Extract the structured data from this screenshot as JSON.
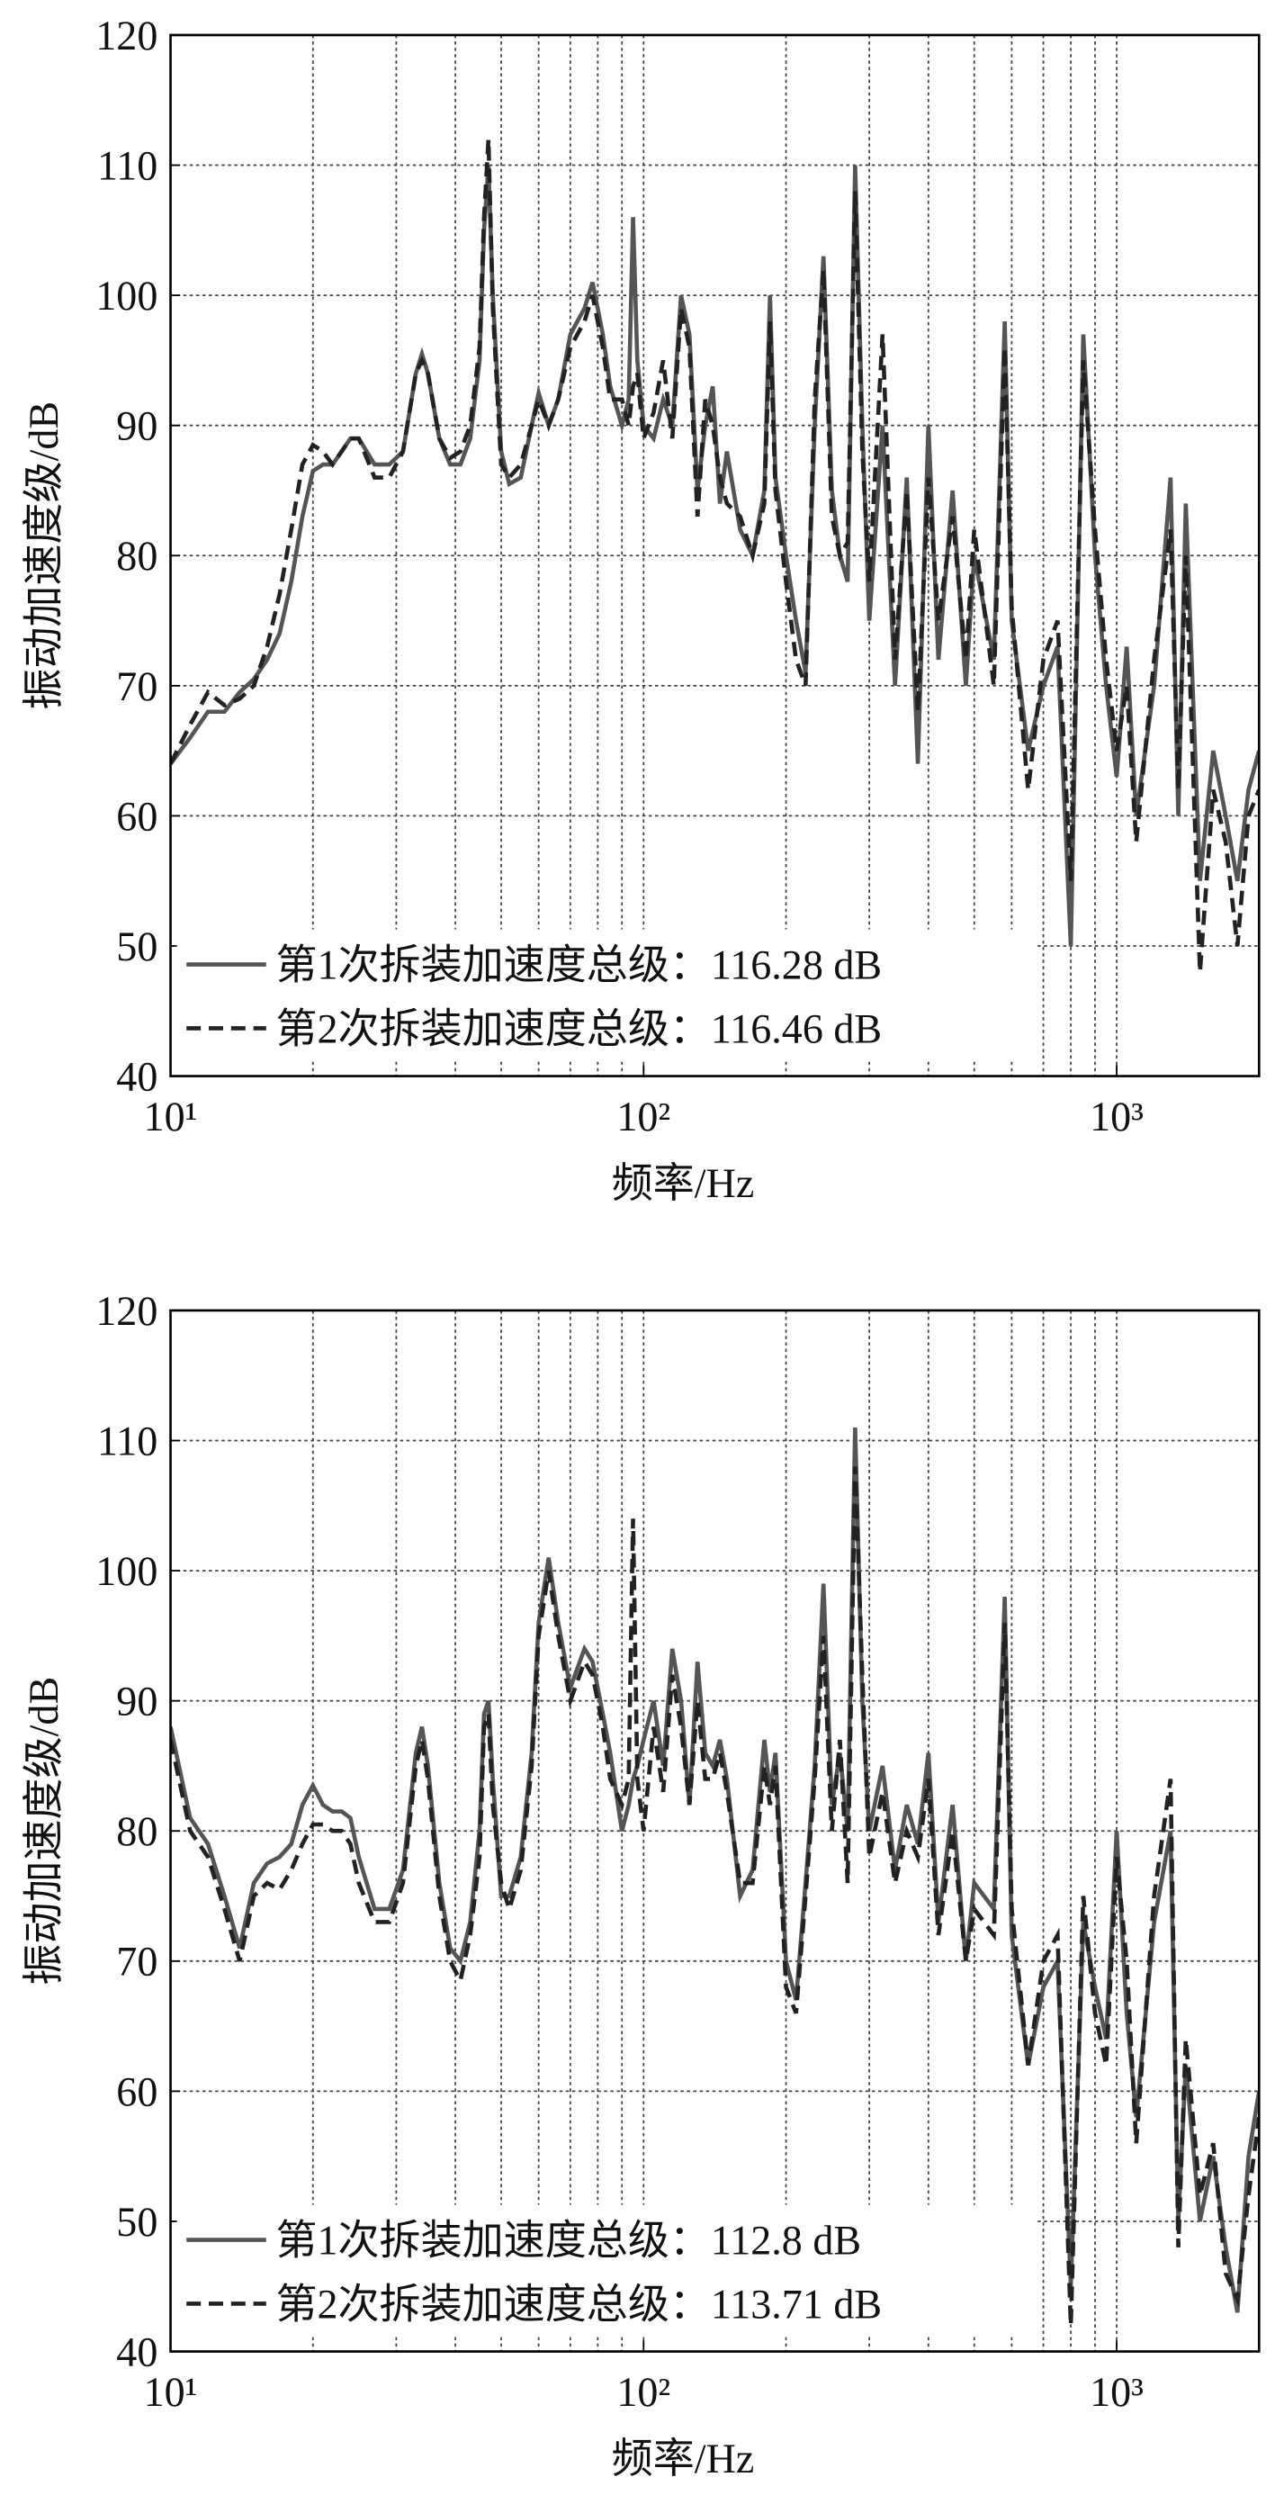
{
  "chart_data": [
    {
      "type": "line",
      "x_label": "频率/Hz",
      "y_label": "振动加速度级/dB",
      "log_x": true,
      "grid": true,
      "legend": "lower-left",
      "xlim": [
        10,
        2000
      ],
      "ylim": [
        40,
        120
      ],
      "xticks": [
        {
          "value": 10,
          "label": "10¹"
        },
        {
          "value": 100,
          "label": "10²"
        },
        {
          "value": 1000,
          "label": "10³"
        }
      ],
      "minor_xticks": [
        20,
        30,
        40,
        50,
        60,
        70,
        80,
        90,
        200,
        300,
        400,
        500,
        600,
        700,
        800,
        900
      ],
      "yticks": [
        40,
        50,
        60,
        70,
        80,
        90,
        100,
        110,
        120
      ],
      "x": [
        10,
        11,
        12,
        13,
        14,
        15,
        16,
        17,
        18,
        19,
        20,
        21,
        22,
        23,
        24,
        25,
        27,
        29,
        31,
        33,
        34,
        35,
        37,
        39,
        41,
        43,
        45,
        46,
        47,
        48,
        50,
        52,
        55,
        58,
        60,
        63,
        66,
        70,
        75,
        78,
        82,
        85,
        90,
        93,
        95,
        97,
        100,
        105,
        110,
        115,
        120,
        125,
        130,
        135,
        140,
        145,
        150,
        160,
        170,
        180,
        185,
        190,
        200,
        210,
        220,
        230,
        240,
        250,
        260,
        270,
        280,
        290,
        300,
        320,
        340,
        360,
        380,
        400,
        420,
        450,
        480,
        500,
        550,
        580,
        600,
        650,
        700,
        750,
        800,
        850,
        900,
        950,
        1000,
        1050,
        1100,
        1200,
        1300,
        1350,
        1400,
        1500,
        1600,
        1700,
        1800,
        1900,
        2000
      ],
      "series": [
        {
          "name": "第1次拆装加速度总级：116.28 dB",
          "color": "#555555",
          "dash": false,
          "values": [
            64,
            66,
            68,
            68,
            69.5,
            70.5,
            72,
            74,
            78,
            83,
            86.5,
            87,
            87,
            88,
            89,
            89,
            87,
            87,
            88,
            94,
            95.5,
            94,
            89,
            87,
            87,
            89,
            95,
            105,
            110,
            100,
            88,
            85.5,
            86,
            90,
            92.5,
            90,
            92,
            97,
            99,
            101,
            97,
            93,
            90,
            92,
            106,
            95,
            90,
            89,
            92,
            90,
            100,
            97,
            85,
            90,
            93,
            84,
            88,
            82,
            80,
            85,
            100,
            86,
            80,
            75,
            71,
            90,
            103,
            85,
            80,
            78,
            110,
            90,
            75,
            90,
            70,
            86,
            64,
            90,
            72,
            85,
            70,
            80,
            72,
            98,
            75,
            65,
            70,
            73,
            50,
            97,
            80,
            70,
            63,
            73,
            60,
            70,
            86,
            60,
            84,
            55,
            65,
            60,
            55,
            62,
            65
          ]
        },
        {
          "name": "第2次拆装加速度总级：116.46 dB",
          "color": "#222222",
          "dash": true,
          "values": [
            64,
            67,
            69.5,
            68.5,
            69,
            70,
            73,
            77,
            82,
            87,
            88.5,
            88,
            87,
            88,
            89,
            89,
            86,
            86,
            88,
            94,
            95,
            94,
            89,
            87.5,
            88,
            90,
            96,
            106,
            112,
            99,
            87,
            86,
            87,
            90,
            92,
            90,
            92,
            96,
            98,
            100,
            96,
            92,
            92,
            90,
            93,
            94,
            89,
            91,
            95,
            89,
            99,
            96,
            83,
            92,
            90,
            86,
            84,
            83,
            80,
            84,
            98,
            85,
            78,
            72,
            70,
            92,
            102,
            83,
            80,
            81,
            108,
            88,
            78,
            97,
            72,
            85,
            68,
            86,
            75,
            83,
            72,
            82,
            70,
            96,
            76,
            62,
            72,
            75,
            55,
            95,
            82,
            72,
            65,
            70,
            58,
            72,
            82,
            62,
            80,
            48,
            62,
            58,
            50,
            60,
            62
          ]
        }
      ]
    },
    {
      "type": "line",
      "x_label": "频率/Hz",
      "y_label": "振动加速度级/dB",
      "log_x": true,
      "grid": true,
      "legend": "lower-left",
      "xlim": [
        10,
        2000
      ],
      "ylim": [
        40,
        120
      ],
      "xticks": [
        {
          "value": 10,
          "label": "10¹"
        },
        {
          "value": 100,
          "label": "10²"
        },
        {
          "value": 1000,
          "label": "10³"
        }
      ],
      "minor_xticks": [
        20,
        30,
        40,
        50,
        60,
        70,
        80,
        90,
        200,
        300,
        400,
        500,
        600,
        700,
        800,
        900
      ],
      "yticks": [
        40,
        50,
        60,
        70,
        80,
        90,
        100,
        110,
        120
      ],
      "x": [
        10,
        11,
        12,
        13,
        14,
        15,
        16,
        17,
        18,
        19,
        20,
        21,
        22,
        23,
        24,
        25,
        27,
        29,
        31,
        33,
        34,
        35,
        37,
        39,
        41,
        43,
        45,
        46,
        47,
        48,
        50,
        52,
        55,
        58,
        60,
        63,
        66,
        70,
        75,
        78,
        82,
        85,
        90,
        93,
        95,
        97,
        100,
        105,
        110,
        115,
        120,
        125,
        130,
        135,
        140,
        145,
        150,
        160,
        170,
        180,
        185,
        190,
        200,
        210,
        220,
        230,
        240,
        250,
        260,
        270,
        280,
        290,
        300,
        320,
        340,
        360,
        380,
        400,
        420,
        450,
        480,
        500,
        550,
        580,
        600,
        650,
        700,
        750,
        800,
        850,
        900,
        950,
        1000,
        1050,
        1100,
        1200,
        1300,
        1350,
        1400,
        1500,
        1600,
        1700,
        1800,
        1900,
        2000
      ],
      "series": [
        {
          "name": "第1次拆装加速度总级：112.8 dB",
          "color": "#555555",
          "dash": false,
          "values": [
            88,
            81,
            79,
            75,
            71,
            76,
            77.5,
            78,
            79,
            82,
            83.5,
            82,
            81.5,
            81.5,
            81,
            78,
            74,
            74,
            77,
            86,
            88,
            85,
            76,
            71,
            70,
            73,
            80,
            89,
            90,
            84,
            75,
            75,
            78,
            86,
            96,
            101,
            96,
            91,
            94,
            93,
            89,
            86,
            80,
            82,
            84,
            85,
            87,
            90,
            85,
            94,
            90,
            82,
            93,
            86,
            85,
            87,
            84,
            75,
            77,
            87,
            83,
            86,
            70,
            67,
            76,
            85,
            99,
            82,
            86,
            80,
            111,
            90,
            80,
            85,
            77,
            82,
            79,
            86,
            73,
            82,
            70,
            76,
            74,
            98,
            72,
            62,
            68,
            70,
            45,
            73,
            68,
            64,
            80,
            66,
            58,
            73,
            80,
            50,
            62,
            50,
            55,
            48,
            43,
            55,
            60
          ]
        },
        {
          "name": "第2次拆装加速度总级：113.71 dB",
          "color": "#222222",
          "dash": true,
          "values": [
            87,
            80,
            78,
            74,
            70,
            75,
            76,
            75.5,
            77,
            79,
            80.5,
            80.5,
            80,
            80,
            79,
            76,
            73,
            73,
            76,
            85,
            87,
            84,
            75,
            70,
            68.5,
            72,
            78,
            88,
            89,
            82,
            76,
            74,
            77,
            85,
            95,
            100,
            95,
            90,
            93,
            92,
            88,
            84,
            82,
            84,
            104,
            84,
            80,
            88,
            83,
            92,
            88,
            82,
            90,
            84,
            84,
            86,
            83,
            76,
            76,
            85,
            82,
            85,
            68,
            66,
            75,
            84,
            95,
            80,
            87,
            76,
            108,
            92,
            78,
            83,
            76,
            80,
            78,
            84,
            72,
            80,
            70,
            74,
            72,
            96,
            74,
            62,
            70,
            72,
            42,
            75,
            66,
            62,
            78,
            70,
            56,
            75,
            84,
            48,
            64,
            52,
            56,
            46,
            44,
            52,
            58
          ]
        }
      ]
    }
  ]
}
